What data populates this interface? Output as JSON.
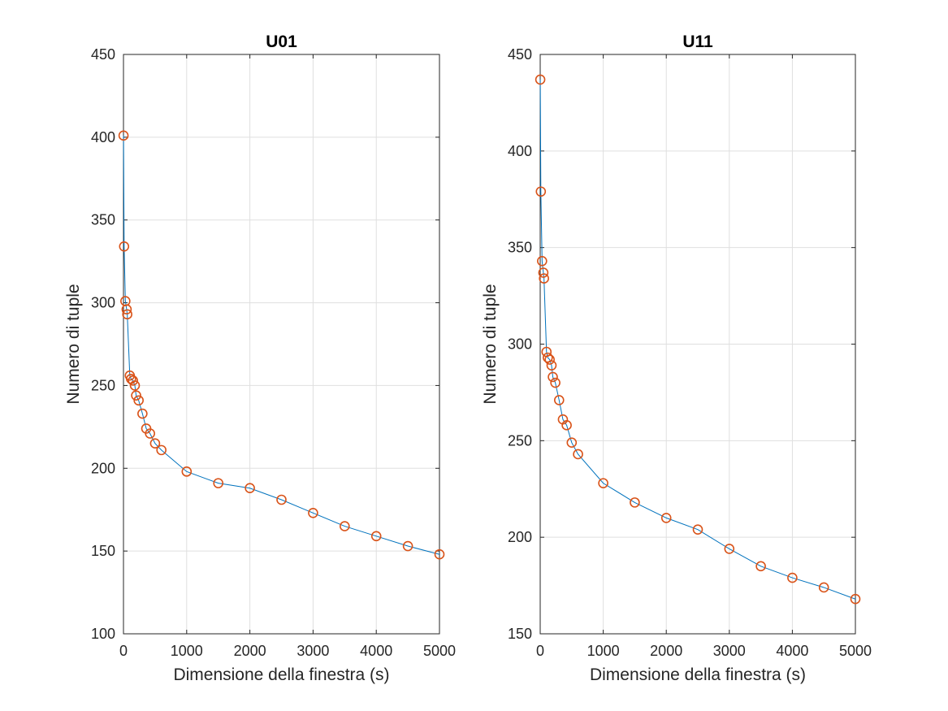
{
  "colors": {
    "line": "#0072BD",
    "marker": "#D95319",
    "axis": "#262626",
    "grid": "#dfdfdf"
  },
  "chart_data": [
    {
      "type": "line",
      "title": "U01",
      "xlabel": "Dimensione della finestra (s)",
      "ylabel": "Numero di tuple",
      "xlim": [
        0,
        5000
      ],
      "ylim": [
        100,
        450
      ],
      "xticks": [
        0,
        1000,
        2000,
        3000,
        4000,
        5000
      ],
      "yticks": [
        100,
        150,
        200,
        250,
        300,
        350,
        400,
        450
      ],
      "grid": true,
      "x": [
        1,
        10,
        30,
        50,
        60,
        100,
        120,
        150,
        180,
        200,
        240,
        300,
        360,
        420,
        500,
        600,
        1000,
        1500,
        2000,
        2500,
        3000,
        3500,
        4000,
        4500,
        5000
      ],
      "values": [
        401,
        334,
        301,
        296,
        293,
        256,
        254,
        253,
        250,
        244,
        241,
        233,
        224,
        221,
        215,
        211,
        198,
        191,
        188,
        181,
        173,
        165,
        159,
        153,
        148
      ]
    },
    {
      "type": "line",
      "title": "U11",
      "xlabel": "Dimensione della finestra (s)",
      "ylabel": "Numero di tuple",
      "xlim": [
        0,
        5000
      ],
      "ylim": [
        150,
        450
      ],
      "xticks": [
        0,
        1000,
        2000,
        3000,
        4000,
        5000
      ],
      "yticks": [
        150,
        200,
        250,
        300,
        350,
        400,
        450
      ],
      "grid": true,
      "x": [
        1,
        10,
        30,
        50,
        60,
        100,
        120,
        150,
        180,
        200,
        240,
        300,
        360,
        420,
        500,
        600,
        1000,
        1500,
        2000,
        2500,
        3000,
        3500,
        4000,
        4500,
        5000
      ],
      "values": [
        437,
        379,
        343,
        337,
        334,
        296,
        293,
        292,
        289,
        283,
        280,
        271,
        261,
        258,
        249,
        243,
        228,
        218,
        210,
        204,
        194,
        185,
        179,
        174,
        168
      ]
    }
  ]
}
